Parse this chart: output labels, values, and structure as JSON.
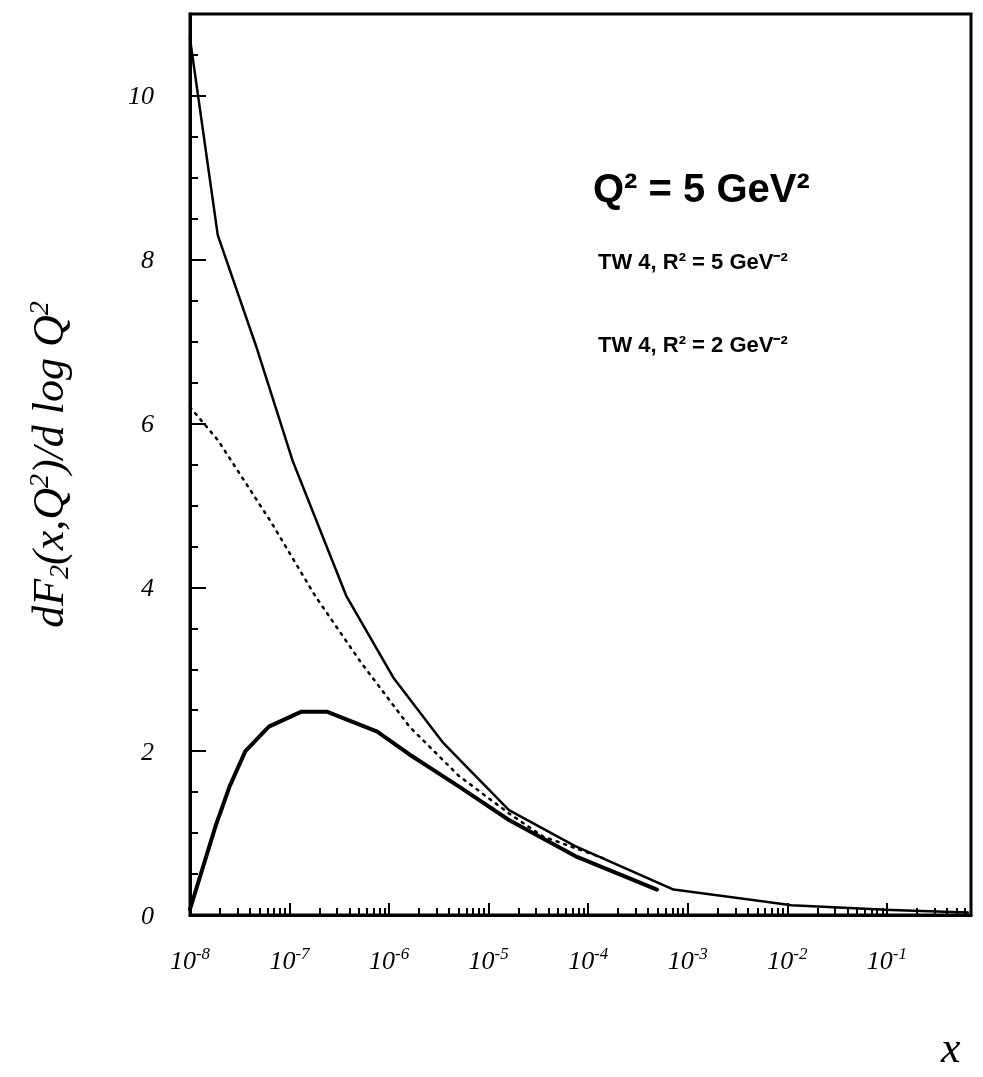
{
  "chart_data": {
    "type": "line",
    "xlabel": "x",
    "ylabel": "dF$_{2}$(x,Q$^{2}$)/d log Q$^{2}$",
    "log": "x",
    "xlim": [
      1e-08,
      0.7
    ],
    "ylim": [
      0,
      11
    ],
    "xticks": [
      {
        "value": 1e-08,
        "label": "10$^{-8}$"
      },
      {
        "value": 1e-07,
        "label": "10$^{-7}$"
      },
      {
        "value": 1e-06,
        "label": "10$^{-6}$"
      },
      {
        "value": 1e-05,
        "label": "10$^{-5}$"
      },
      {
        "value": 0.0001,
        "label": "10$^{-4}$"
      },
      {
        "value": 0.001,
        "label": "10$^{-3}$"
      },
      {
        "value": 0.01,
        "label": "10$^{-2}$"
      },
      {
        "value": 0.1,
        "label": "10$^{-1}$"
      }
    ],
    "yticks": [
      0,
      2,
      4,
      6,
      8,
      10
    ],
    "grid": false,
    "marker": "none",
    "annotations": [
      "Q² = 5 GeV²",
      "TW 4, R² = 5 GeV⁻²",
      "TW 4, R² = 2 GeV⁻²"
    ],
    "series": [
      {
        "color": "#000000",
        "line_style": "solid",
        "x": [
          1e-08,
          1.9e-08,
          4.6e-08,
          1.07e-07,
          3.7e-07,
          1.1e-06,
          3.5e-06,
          1.6e-05,
          7.4e-05,
          0.00072,
          0.011,
          0.11,
          0.65
        ],
        "values": [
          10.7,
          8.3,
          6.95,
          5.55,
          3.9,
          2.9,
          2.1,
          1.28,
          0.84,
          0.31,
          0.12,
          0.06,
          0.03
        ]
      },
      {
        "color": "#000000",
        "line_style": "dotted",
        "x": [
          1e-08,
          1.9e-08,
          6.5e-08,
          1.8e-07,
          5.1e-07,
          1.6e-06,
          5e-06,
          1.6e-05,
          3.5e-05,
          0.00016
        ],
        "values": [
          6.2,
          5.8,
          4.8,
          3.9,
          3.1,
          2.3,
          1.7,
          1.24,
          0.96,
          0.67
        ]
      },
      {
        "color": "#000000",
        "line_style": "solid",
        "x": [
          1e-08,
          1.8e-08,
          2.5e-08,
          3.6e-08,
          6.2e-08,
          1.3e-07,
          2.4e-07,
          7.6e-07,
          1.6e-06,
          5e-06,
          1.6e-05,
          7.4e-05,
          0.00049
        ],
        "values": [
          0.07,
          1.08,
          1.57,
          2.0,
          2.3,
          2.48,
          2.48,
          2.24,
          1.96,
          1.57,
          1.16,
          0.72,
          0.31
        ]
      }
    ]
  }
}
